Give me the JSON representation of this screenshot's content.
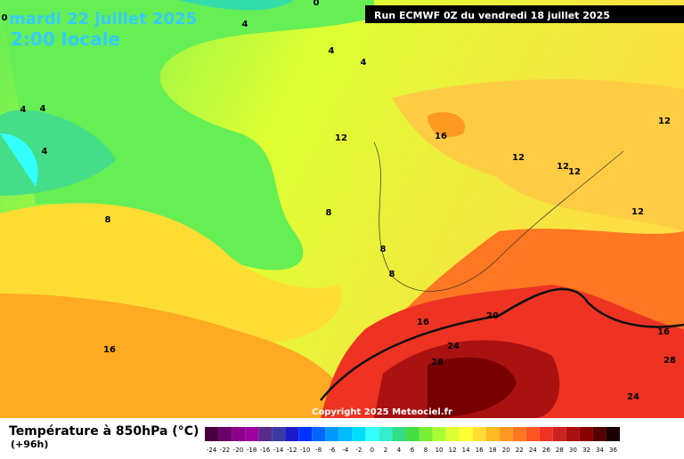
{
  "header": {
    "title": "mardi 22 juillet 2025",
    "time": "2:00 locale",
    "run": "Run ECMWF 0Z du vendredi 18 juillet 2025"
  },
  "map": {
    "contour_labels": [
      0,
      4,
      4,
      4,
      4,
      4,
      4,
      0,
      12,
      16,
      12,
      12,
      12,
      12,
      12,
      8,
      8,
      8,
      8,
      16,
      20,
      24,
      28,
      16,
      28,
      24,
      16
    ],
    "copyright": "Copyright 2025 Meteociel.fr"
  },
  "legend": {
    "title": "Température à 850hPa (°C)",
    "lead": "(+96h)",
    "labels": [
      -24,
      -22,
      -20,
      -18,
      -16,
      -14,
      -12,
      -10,
      -8,
      -6,
      -4,
      -2,
      0,
      2,
      4,
      6,
      8,
      10,
      12,
      14,
      16,
      18,
      20,
      22,
      24,
      26,
      28,
      30,
      32,
      34,
      36
    ],
    "colors": [
      "#4a0040",
      "#6a006a",
      "#8a008a",
      "#a000a0",
      "#5a2a8a",
      "#3a3aa0",
      "#1a1acc",
      "#0033ff",
      "#0066ff",
      "#0099ff",
      "#00bbff",
      "#00ddff",
      "#33ffff",
      "#33eecc",
      "#33dd88",
      "#44dd44",
      "#77ee33",
      "#aaff33",
      "#ddff33",
      "#ffff33",
      "#ffdd33",
      "#ffbb22",
      "#ff9922",
      "#ff7722",
      "#ff5522",
      "#ee3322",
      "#cc2222",
      "#aa1111",
      "#880000",
      "#550000",
      "#1a0000"
    ]
  }
}
